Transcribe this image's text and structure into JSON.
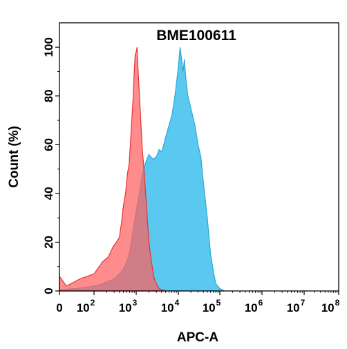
{
  "chart_data": {
    "type": "area",
    "title": "BME100611",
    "xlabel": "APC-A",
    "ylabel": "Count  (%)",
    "x_scale": "biexponential",
    "xlim": [
      0,
      100000000
    ],
    "ylim": [
      0,
      110
    ],
    "y_ticks": [
      "0",
      "20",
      "40",
      "60",
      "80",
      "100"
    ],
    "x_ticks": [
      {
        "base": "0",
        "exp": ""
      },
      {
        "base": "10",
        "exp": "2"
      },
      {
        "base": "10",
        "exp": "3"
      },
      {
        "base": "10",
        "exp": "4"
      },
      {
        "base": "10",
        "exp": "5"
      },
      {
        "base": "10",
        "exp": "6"
      },
      {
        "base": "10",
        "exp": "7"
      },
      {
        "base": "10",
        "exp": "8"
      }
    ],
    "series": [
      {
        "color": "#ff6060",
        "edge_color": "#e83030",
        "x": [
          0,
          20,
          60,
          100,
          160,
          220,
          280,
          340,
          400,
          450,
          500,
          560,
          620,
          680,
          740,
          800,
          850,
          900,
          950,
          1000,
          1050,
          1100,
          1200,
          1300,
          1400,
          1500,
          1600,
          1800,
          2000,
          2300,
          2600,
          3000,
          3500,
          4000,
          5000
        ],
        "y": [
          6,
          2,
          5,
          7,
          12,
          14,
          18,
          20,
          22,
          28,
          35,
          40,
          48,
          52,
          62,
          72,
          80,
          90,
          97,
          98,
          100,
          92,
          80,
          68,
          58,
          52,
          45,
          32,
          20,
          12,
          6,
          3,
          1,
          0.5,
          0
        ]
      },
      {
        "color": "#5bc8ef",
        "edge_color": "#2ba9d9",
        "x": [
          0,
          50,
          100,
          160,
          220,
          300,
          400,
          500,
          600,
          700,
          800,
          900,
          1000,
          1200,
          1400,
          1700,
          2000,
          2500,
          3000,
          3500,
          4000,
          4500,
          5000,
          6000,
          7000,
          8000,
          9000,
          10000,
          11000,
          12000,
          13000,
          14000,
          15000,
          17000,
          20000,
          25000,
          30000,
          35000,
          40000,
          50000,
          60000,
          70000,
          80000,
          100000,
          130000
        ],
        "y": [
          0.5,
          1,
          2,
          3,
          4,
          5,
          7,
          9,
          12,
          16,
          22,
          28,
          33,
          40,
          48,
          53,
          56,
          54,
          55,
          58,
          57,
          60,
          63,
          68,
          72,
          78,
          85,
          92,
          100,
          95,
          90,
          95,
          88,
          80,
          75,
          68,
          60,
          55,
          45,
          30,
          15,
          8,
          3,
          1,
          0
        ]
      }
    ]
  }
}
